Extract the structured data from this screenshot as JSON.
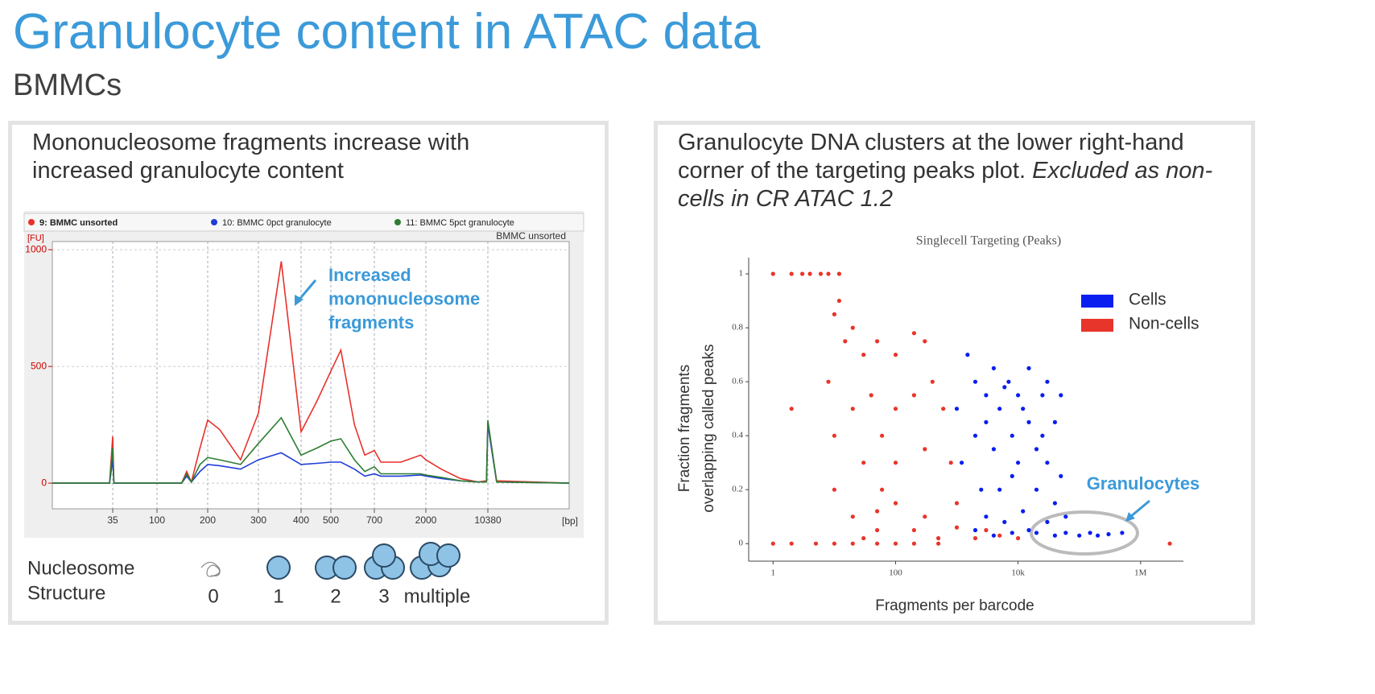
{
  "title": "Granulocyte content in ATAC data",
  "subtitle": "BMMCs",
  "panels": [
    {
      "heading": "Mononucleosome fragments increase with increased granulocyte content"
    },
    {
      "heading": "Granulocyte DNA clusters at the lower right-hand corner of the targeting peaks plot.",
      "emphasis": "Excluded as non-cells in CR ATAC 1.2"
    }
  ],
  "nucleosome": {
    "label": [
      "Nucleosome",
      "Structure"
    ],
    "counts": [
      "0",
      "1",
      "2",
      "3",
      "multiple"
    ]
  },
  "chart_data": [
    {
      "type": "line",
      "note": "BMMC unsorted",
      "ylabel": "[FU]",
      "xlabel": "[bp]",
      "annotation": [
        "Increased",
        "mononucleosome",
        "fragments"
      ],
      "x": [
        20,
        34,
        35,
        36,
        100,
        140,
        150,
        160,
        180,
        200,
        220,
        260,
        300,
        350,
        400,
        450,
        500,
        540,
        600,
        650,
        700,
        800,
        1200,
        1800,
        2000,
        3000,
        5000,
        8000,
        10000,
        10380,
        10800,
        15000
      ],
      "series": [
        {
          "name": "9: BMMC unsorted",
          "color": "#e8312a",
          "values": [
            0,
            0,
            200,
            0,
            0,
            0,
            50,
            5,
            150,
            270,
            230,
            100,
            300,
            950,
            220,
            350,
            480,
            570,
            250,
            120,
            140,
            90,
            90,
            120,
            100,
            60,
            20,
            5,
            10,
            260,
            10,
            0
          ]
        },
        {
          "name": "10: BMMC 0pct granulocyte",
          "color": "#1f3ed6",
          "values": [
            0,
            0,
            100,
            0,
            0,
            0,
            30,
            5,
            50,
            80,
            75,
            60,
            100,
            130,
            80,
            85,
            90,
            90,
            60,
            30,
            40,
            30,
            30,
            35,
            30,
            20,
            10,
            5,
            5,
            250,
            5,
            0
          ]
        },
        {
          "name": "11: BMMC 5pct granulocyte",
          "color": "#2e7d32",
          "values": [
            0,
            0,
            150,
            0,
            0,
            0,
            40,
            5,
            80,
            110,
            100,
            80,
            170,
            280,
            120,
            150,
            180,
            190,
            100,
            50,
            70,
            40,
            40,
            40,
            35,
            25,
            10,
            5,
            5,
            270,
            5,
            0
          ]
        }
      ],
      "xlim": [
        20,
        15000
      ],
      "xticks": [
        35,
        100,
        200,
        300,
        400,
        500,
        700,
        2000,
        10380
      ],
      "ylim": [
        -110,
        1035
      ],
      "yticks": [
        0,
        500,
        1000
      ],
      "grid": true
    },
    {
      "type": "scatter",
      "title": "Singlecell Targeting (Peaks)",
      "xlabel": "Fragments per barcode",
      "ylabel": [
        "Fraction fragments",
        "overlapping called peaks"
      ],
      "annotation": "Granulocytes",
      "log_x": true,
      "series": [
        {
          "name": "Cells",
          "color": "#0a1ef0",
          "x": [
            1000,
            1200,
            1500,
            2000,
            2000,
            2500,
            3000,
            3000,
            4000,
            4000,
            5000,
            5000,
            6000,
            7000,
            8000,
            8000,
            10000,
            10000,
            12000,
            15000,
            15000,
            20000,
            20000,
            25000,
            30000,
            30000,
            40000,
            40000,
            50000,
            50000,
            2000,
            4000,
            8000,
            15000,
            20000,
            40000,
            60000,
            100000,
            150000,
            200000,
            300000,
            500000,
            30000,
            60000,
            3000,
            6000,
            12000,
            25000
          ],
          "values": [
            0.5,
            0.3,
            0.7,
            0.6,
            0.4,
            0.2,
            0.55,
            0.1,
            0.65,
            0.35,
            0.5,
            0.2,
            0.08,
            0.6,
            0.4,
            0.25,
            0.55,
            0.3,
            0.12,
            0.65,
            0.45,
            0.35,
            0.2,
            0.55,
            0.6,
            0.3,
            0.45,
            0.15,
            0.55,
            0.25,
            0.05,
            0.03,
            0.04,
            0.05,
            0.04,
            0.03,
            0.04,
            0.03,
            0.04,
            0.03,
            0.035,
            0.04,
            0.08,
            0.1,
            0.45,
            0.58,
            0.5,
            0.4
          ]
        },
        {
          "name": "Non-cells",
          "color": "#e8352b",
          "x": [
            1,
            2,
            3,
            4,
            6,
            8,
            12,
            1,
            2,
            5,
            10,
            20,
            50,
            100,
            200,
            500,
            3000000,
            2,
            10,
            12,
            15,
            8,
            20,
            30,
            50,
            100,
            200,
            300,
            10,
            20,
            40,
            60,
            100,
            200,
            400,
            600,
            10,
            30,
            60,
            100,
            300,
            800,
            20,
            50,
            100,
            300,
            1000,
            50,
            200,
            1000,
            3000,
            5000,
            10000,
            30,
            500,
            2000
          ],
          "values": [
            1,
            1,
            1,
            1,
            1,
            1,
            1,
            0,
            0,
            0,
            0,
            0,
            0,
            0,
            0,
            0,
            0,
            0.5,
            0.85,
            0.9,
            0.75,
            0.6,
            0.8,
            0.7,
            0.75,
            0.7,
            0.78,
            0.75,
            0.4,
            0.5,
            0.55,
            0.4,
            0.5,
            0.55,
            0.6,
            0.5,
            0.2,
            0.3,
            0.2,
            0.3,
            0.35,
            0.3,
            0.1,
            0.12,
            0.15,
            0.1,
            0.15,
            0.05,
            0.05,
            0.06,
            0.05,
            0.03,
            0.02,
            0.02,
            0.02,
            0.02
          ]
        }
      ],
      "xlim": [
        0.4,
        5000000
      ],
      "xticks": [
        1,
        100,
        {
          "value": 10000,
          "label": "10k"
        },
        {
          "value": 1000000,
          "label": "1M"
        }
      ],
      "ylim": [
        -0.065,
        1.06
      ],
      "yticks": [
        0,
        0.2,
        0.4,
        0.6,
        0.8,
        1
      ]
    }
  ]
}
